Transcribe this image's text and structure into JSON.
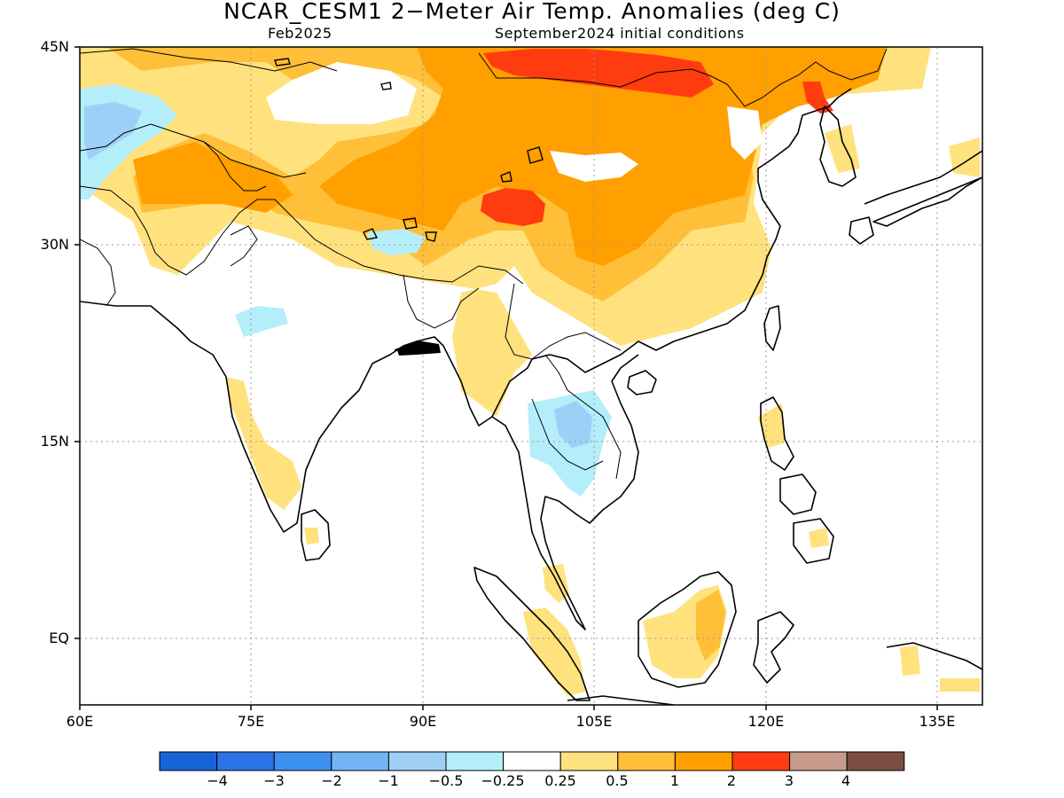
{
  "title": "NCAR_CESM1 2−Meter Air Temp. Anomalies (deg C)",
  "subtitle_left": "Feb2025",
  "subtitle_right": "September2024 initial conditions",
  "lat_labels": [
    "45N",
    "30N",
    "15N",
    "EQ"
  ],
  "lon_labels": [
    "60E",
    "75E",
    "90E",
    "105E",
    "120E",
    "135E"
  ],
  "colorbar": {
    "colors": [
      "#1764d8",
      "#2a74e8",
      "#3c90ee",
      "#74b3f5",
      "#9ed0f7",
      "#b4eefa",
      "#ffffff",
      "#ffe27e",
      "#ffbf38",
      "#ff9f00",
      "#ff3c10",
      "#c89a8c",
      "#7a4e40"
    ],
    "labels": [
      "−4",
      "−3",
      "−2",
      "−1",
      "−0.5",
      "−0.25",
      "0.25",
      "0.5",
      "1",
      "2",
      "3",
      "4"
    ]
  },
  "legend_colors": {
    "warm_weak": "#ffe27e",
    "warm_mod": "#ffbf38",
    "warm_strong": "#ff9f00",
    "warm_very": "#ff3c10",
    "cool_weak": "#b4eefa",
    "cool_mod": "#9ed0f7",
    "cool_strong": "#74b3f5"
  }
}
